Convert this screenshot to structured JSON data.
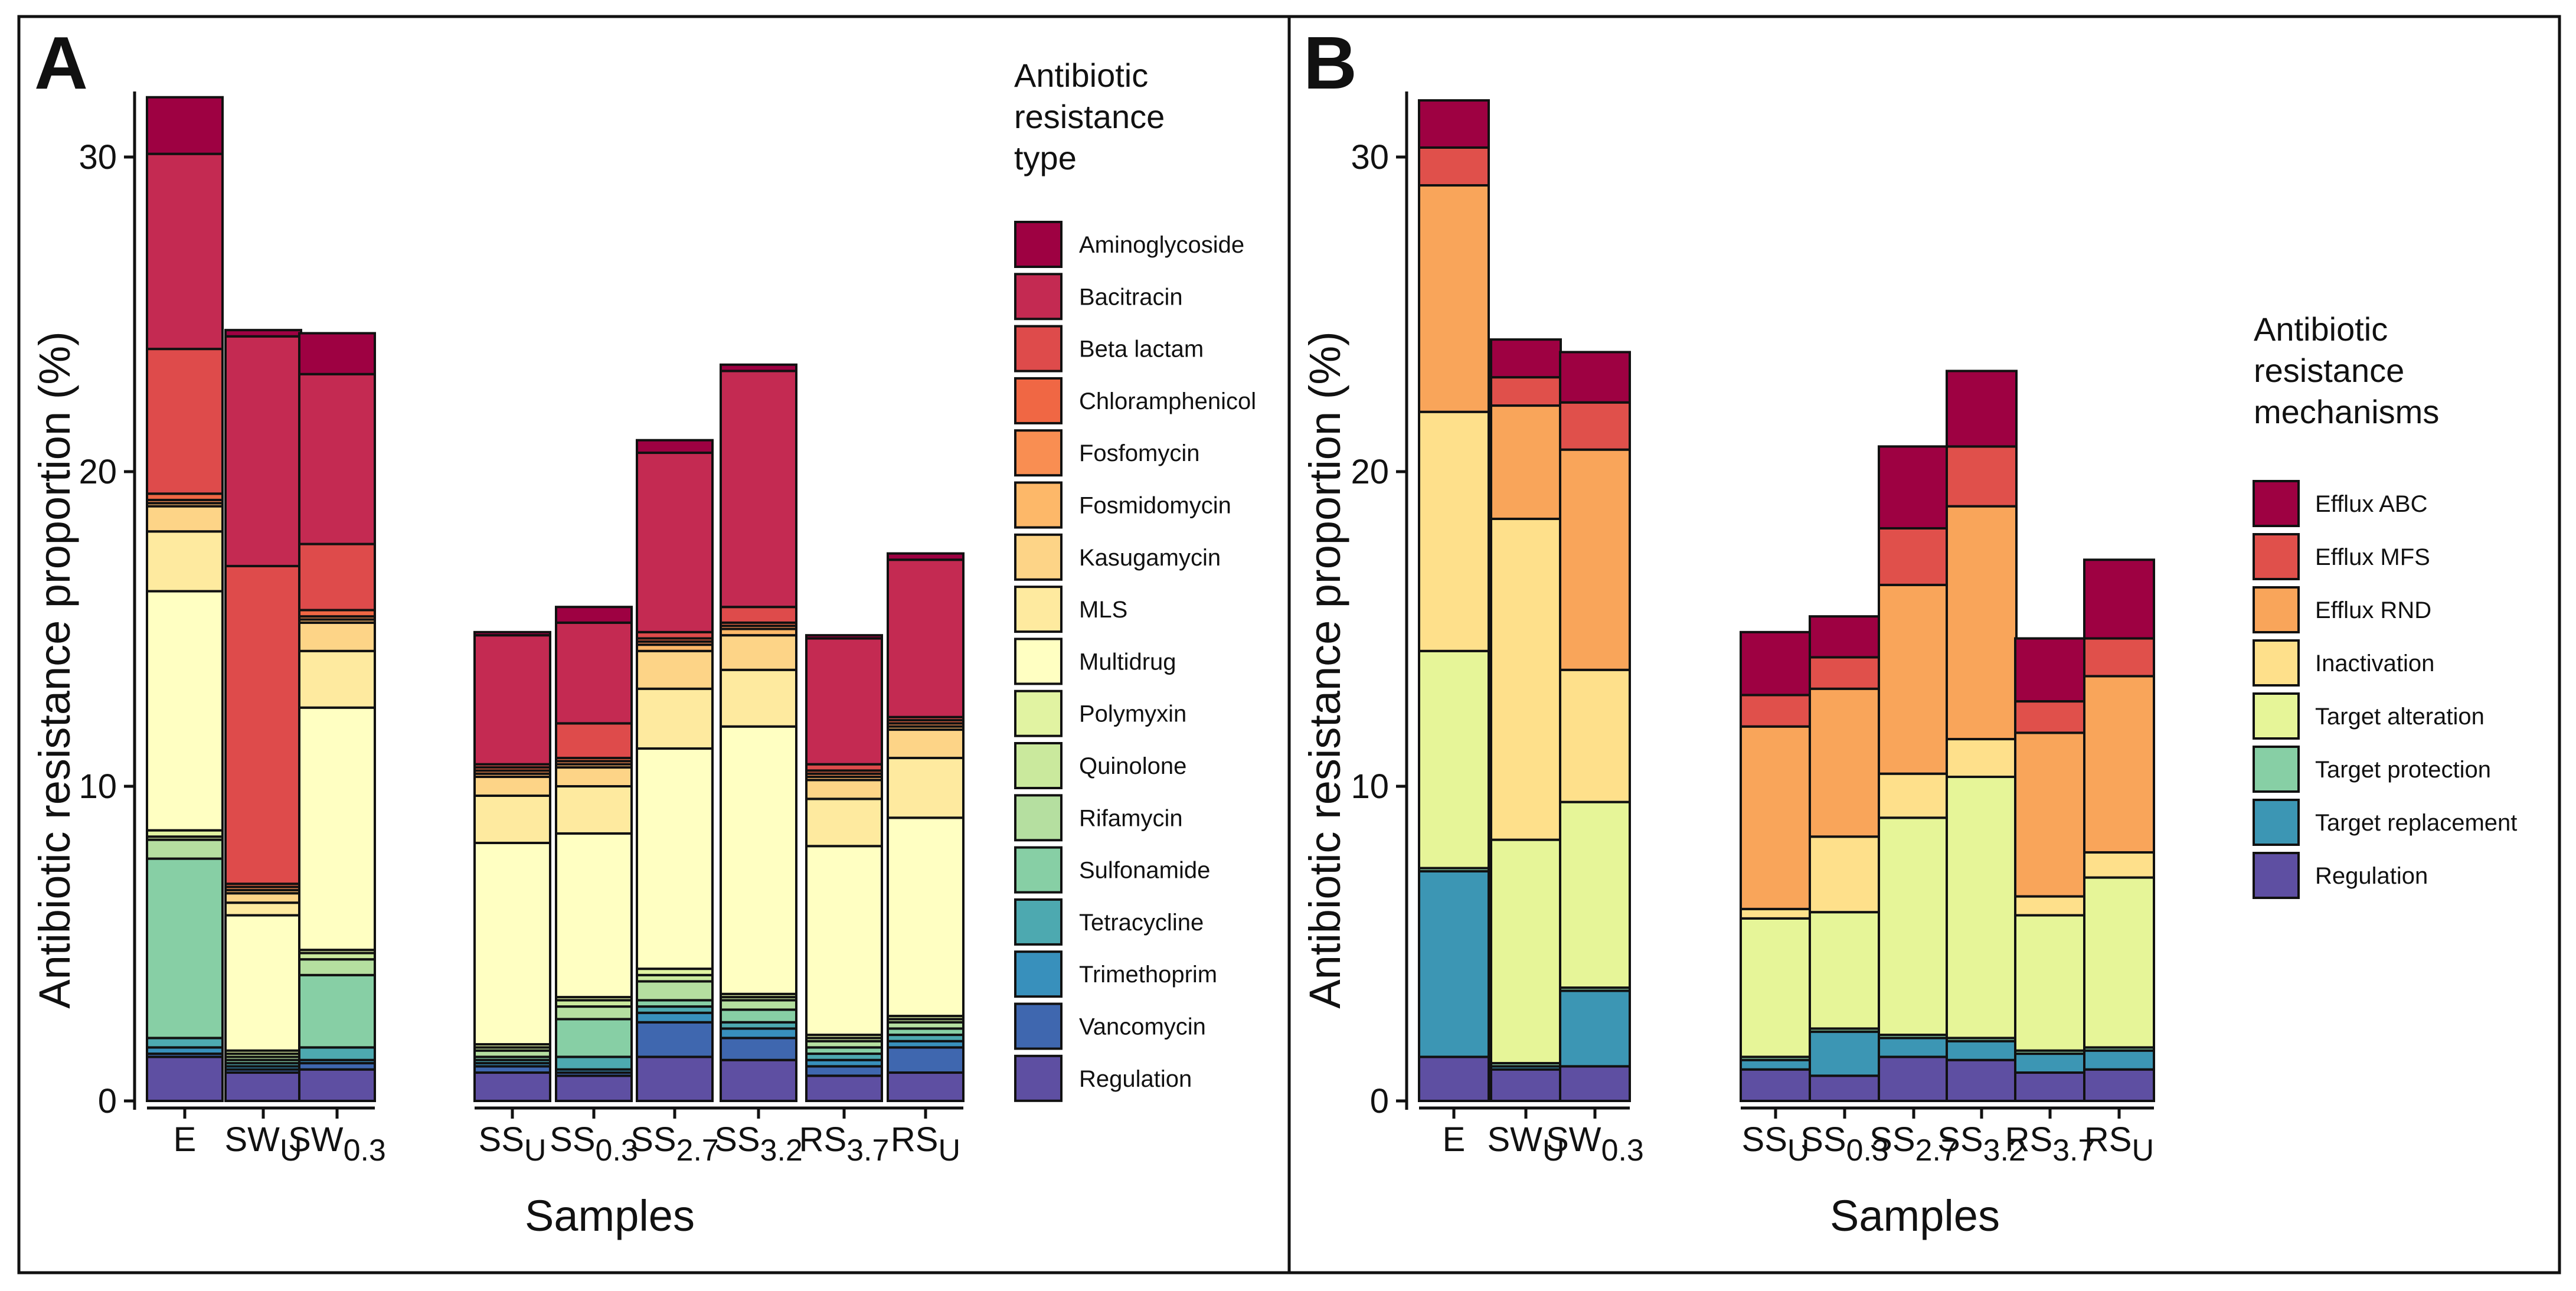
{
  "figure": {
    "panel_a_letter": "A",
    "panel_b_letter": "B"
  },
  "chart_data": [
    {
      "type": "bar",
      "stacked": true,
      "panel": "A",
      "xlabel": "Samples",
      "ylabel": "Antibiotic resistance proportion (%)",
      "ylim": [
        0,
        32
      ],
      "yticks": [
        0,
        10,
        20,
        30
      ],
      "categories": [
        {
          "main": "E",
          "sub": ""
        },
        {
          "main": "SW",
          "sub": "U"
        },
        {
          "main": "SW",
          "sub": "0.3"
        },
        {
          "main": "SS",
          "sub": "U"
        },
        {
          "main": "SS",
          "sub": "0.3"
        },
        {
          "main": "SS",
          "sub": "2.7"
        },
        {
          "main": "SS",
          "sub": "3.2"
        },
        {
          "main": "RS",
          "sub": "3.7"
        },
        {
          "main": "RS",
          "sub": "U"
        }
      ],
      "category_groups": [
        [
          0,
          1,
          2
        ],
        [
          3,
          4,
          5,
          6,
          7,
          8
        ]
      ],
      "legend_title": [
        "Antibiotic",
        "resistance",
        "type"
      ],
      "series": [
        {
          "name": "Regulation",
          "color": "#5E4FA2",
          "values": [
            1.4,
            0.9,
            1.0,
            0.9,
            0.8,
            1.4,
            1.3,
            0.8,
            0.9
          ]
        },
        {
          "name": "Vancomycin",
          "color": "#3F67AF",
          "values": [
            0.1,
            0.1,
            0.2,
            0.2,
            0.1,
            1.1,
            0.7,
            0.3,
            0.8
          ]
        },
        {
          "name": "Trimethoprim",
          "color": "#3890BC",
          "values": [
            0.2,
            0.1,
            0.1,
            0.1,
            0.1,
            0.3,
            0.3,
            0.2,
            0.2
          ]
        },
        {
          "name": "Tetracycline",
          "color": "#4DA9B0",
          "values": [
            0.3,
            0.1,
            0.4,
            0.1,
            0.4,
            0.2,
            0.2,
            0.2,
            0.2
          ]
        },
        {
          "name": "Sulfonamide",
          "color": "#87CFA5",
          "values": [
            5.7,
            0.1,
            2.3,
            0.1,
            1.2,
            0.2,
            0.4,
            0.2,
            0.2
          ]
        },
        {
          "name": "Rifamycin",
          "color": "#B5DFA0",
          "values": [
            0.6,
            0.1,
            0.5,
            0.2,
            0.4,
            0.6,
            0.3,
            0.2,
            0.2
          ]
        },
        {
          "name": "Quinolone",
          "color": "#CAE99D",
          "values": [
            0.1,
            0.1,
            0.2,
            0.1,
            0.2,
            0.2,
            0.1,
            0.1,
            0.1
          ]
        },
        {
          "name": "Polymyxin",
          "color": "#E1F3A2",
          "values": [
            0.2,
            0.1,
            0.1,
            0.1,
            0.1,
            0.2,
            0.1,
            0.1,
            0.1
          ]
        },
        {
          "name": "Multidrug",
          "color": "#FFFFC2",
          "values": [
            7.6,
            4.3,
            7.7,
            6.4,
            5.2,
            7.0,
            8.5,
            6.0,
            6.3
          ]
        },
        {
          "name": "MLS",
          "color": "#FEEA9F",
          "values": [
            1.9,
            0.4,
            1.8,
            1.5,
            1.5,
            1.9,
            1.8,
            1.5,
            1.9
          ]
        },
        {
          "name": "Kasugamycin",
          "color": "#FDD487",
          "values": [
            0.8,
            0.3,
            0.9,
            0.6,
            0.6,
            1.2,
            1.1,
            0.6,
            0.9
          ]
        },
        {
          "name": "Fosmidomycin",
          "color": "#FDB869",
          "values": [
            0.1,
            0.1,
            0.1,
            0.1,
            0.1,
            0.2,
            0.2,
            0.1,
            0.1
          ]
        },
        {
          "name": "Fosfomycin",
          "color": "#F98E52",
          "values": [
            0.1,
            0.1,
            0.1,
            0.1,
            0.1,
            0.1,
            0.1,
            0.1,
            0.1
          ]
        },
        {
          "name": "Chloramphenicol",
          "color": "#F06744",
          "values": [
            0.2,
            0.1,
            0.2,
            0.1,
            0.1,
            0.1,
            0.1,
            0.1,
            0.1
          ]
        },
        {
          "name": "Beta lactam",
          "color": "#DE4B4B",
          "values": [
            4.6,
            10.1,
            2.1,
            0.1,
            1.1,
            0.2,
            0.5,
            0.2,
            0.1
          ]
        },
        {
          "name": "Bacitracin",
          "color": "#C42A52",
          "values": [
            6.2,
            7.3,
            5.4,
            4.1,
            3.2,
            5.7,
            7.5,
            4.0,
            5.0
          ]
        },
        {
          "name": "Aminoglycoside",
          "color": "#9E0142",
          "values": [
            1.8,
            0.2,
            1.3,
            0.1,
            0.5,
            0.4,
            0.2,
            0.1,
            0.2
          ]
        }
      ]
    },
    {
      "type": "bar",
      "stacked": true,
      "panel": "B",
      "xlabel": "Samples",
      "ylabel": "Antibiotic resistance proportion (%)",
      "ylim": [
        0,
        32
      ],
      "yticks": [
        0,
        10,
        20,
        30
      ],
      "categories": [
        {
          "main": "E",
          "sub": ""
        },
        {
          "main": "SW",
          "sub": "U"
        },
        {
          "main": "SW",
          "sub": "0.3"
        },
        {
          "main": "SS",
          "sub": "U"
        },
        {
          "main": "SS",
          "sub": "0.3"
        },
        {
          "main": "SS",
          "sub": "2.7"
        },
        {
          "main": "SS",
          "sub": "3.2"
        },
        {
          "main": "RS",
          "sub": "3.7"
        },
        {
          "main": "RS",
          "sub": "U"
        }
      ],
      "category_groups": [
        [
          0,
          1,
          2
        ],
        [
          3,
          4,
          5,
          6,
          7,
          8
        ]
      ],
      "legend_title": [
        "Antibiotic",
        "resistance",
        "mechanisms"
      ],
      "series": [
        {
          "name": "Regulation",
          "color": "#5E4FA2",
          "values": [
            1.4,
            1.0,
            1.1,
            1.0,
            0.8,
            1.4,
            1.3,
            0.9,
            1.0
          ]
        },
        {
          "name": "Target replacement",
          "color": "#3C96B4",
          "values": [
            5.9,
            0.1,
            2.4,
            0.3,
            1.4,
            0.6,
            0.6,
            0.6,
            0.6
          ]
        },
        {
          "name": "Target protection",
          "color": "#87CFA5",
          "values": [
            0.1,
            0.1,
            0.1,
            0.1,
            0.1,
            0.1,
            0.1,
            0.1,
            0.1
          ]
        },
        {
          "name": "Target alteration",
          "color": "#E6F598",
          "values": [
            6.9,
            7.1,
            5.9,
            4.4,
            3.7,
            6.9,
            8.3,
            4.3,
            5.4
          ]
        },
        {
          "name": "Inactivation",
          "color": "#FEE08B",
          "values": [
            7.6,
            10.2,
            4.2,
            0.3,
            2.4,
            1.4,
            1.2,
            0.6,
            0.8
          ]
        },
        {
          "name": "Efflux RND",
          "color": "#F9A55A",
          "values": [
            7.2,
            3.6,
            7.0,
            5.8,
            4.7,
            6.0,
            7.4,
            5.2,
            5.6
          ]
        },
        {
          "name": "Efflux MFS",
          "color": "#E0504B",
          "values": [
            1.2,
            0.9,
            1.5,
            1.0,
            1.0,
            1.8,
            1.9,
            1.0,
            1.2
          ]
        },
        {
          "name": "Efflux ABC",
          "color": "#9E0142",
          "values": [
            1.5,
            1.2,
            1.6,
            2.0,
            1.3,
            2.6,
            2.4,
            2.0,
            2.5
          ]
        }
      ]
    }
  ]
}
